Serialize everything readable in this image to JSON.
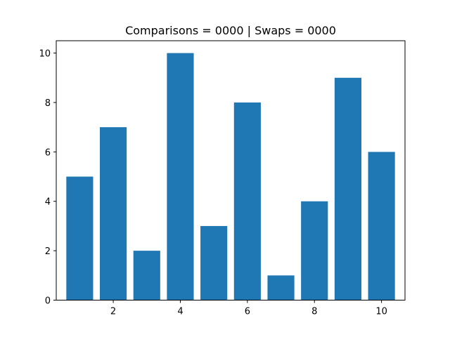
{
  "chart_data": {
    "type": "bar",
    "title": "Comparisons = 0000 | Swaps = 0000",
    "xlabel": "",
    "ylabel": "",
    "x": [
      1,
      2,
      3,
      4,
      5,
      6,
      7,
      8,
      9,
      10
    ],
    "values": [
      5,
      7,
      2,
      10,
      3,
      8,
      1,
      4,
      9,
      6
    ],
    "xlim": [
      0.3,
      10.7
    ],
    "ylim": [
      0,
      10.5
    ],
    "xticks": [
      2,
      4,
      6,
      8,
      10
    ],
    "yticks": [
      0,
      2,
      4,
      6,
      8,
      10
    ],
    "xtick_labels": [
      "2",
      "4",
      "6",
      "8",
      "10"
    ],
    "ytick_labels": [
      "0",
      "2",
      "4",
      "6",
      "8",
      "10"
    ],
    "bar_color": "#1f77b4",
    "grid": false,
    "legend": "none"
  }
}
